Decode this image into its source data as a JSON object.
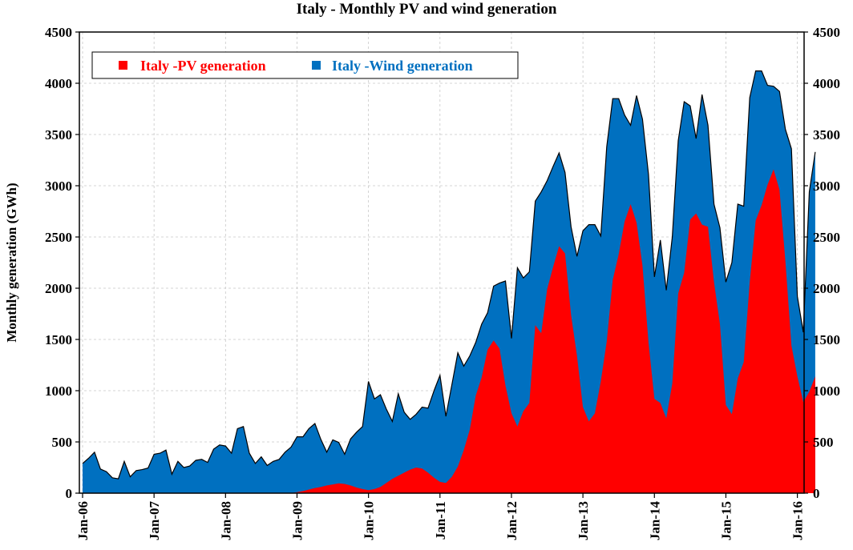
{
  "chart_data": {
    "type": "area",
    "title": "Italy - Monthly PV and wind generation",
    "ylabel": "Monthly generation (GWh)",
    "ylim": [
      0,
      4500
    ],
    "yticks": [
      0,
      500,
      1000,
      1500,
      2000,
      2500,
      3000,
      3500,
      4000,
      4500
    ],
    "xlim": [
      0,
      121
    ],
    "x_start": "Jan-06",
    "xtick_positions": [
      0,
      12,
      24,
      36,
      48,
      60,
      72,
      84,
      96,
      108,
      120
    ],
    "xtick_labels": [
      "Jan-06",
      "Jan-07",
      "Jan-08",
      "Jan-09",
      "Jan-10",
      "Jan-11",
      "Jan-12",
      "Jan-13",
      "Jan-14",
      "Jan-15",
      "Jan-16"
    ],
    "legend_position": "top-left",
    "stacked": true,
    "series": [
      {
        "name": "Italy -PV generation",
        "color": "#ff0000",
        "values": [
          0,
          0,
          0,
          0,
          0,
          0,
          0,
          0,
          0,
          0,
          0,
          0,
          0,
          0,
          0,
          0,
          0,
          0,
          0,
          0,
          0,
          0,
          0,
          0,
          0,
          0,
          0,
          0,
          0,
          0,
          0,
          0,
          0,
          0,
          0,
          0,
          10,
          20,
          35,
          50,
          60,
          75,
          85,
          95,
          90,
          75,
          55,
          40,
          30,
          40,
          60,
          100,
          140,
          170,
          200,
          230,
          250,
          240,
          200,
          150,
          110,
          100,
          160,
          260,
          420,
          620,
          950,
          1130,
          1400,
          1490,
          1410,
          1050,
          780,
          650,
          800,
          880,
          1640,
          1560,
          1990,
          2210,
          2410,
          2340,
          1740,
          1340,
          840,
          700,
          780,
          1090,
          1480,
          2080,
          2330,
          2650,
          2820,
          2640,
          2220,
          1470,
          920,
          880,
          730,
          1070,
          1950,
          2150,
          2670,
          2730,
          2620,
          2600,
          2060,
          1650,
          860,
          770,
          1120,
          1280,
          2060,
          2660,
          2810,
          3010,
          3160,
          2960,
          2260,
          1440,
          1140,
          890,
          990,
          1140
        ]
      },
      {
        "name": "Italy -Wind generation",
        "color": "#0070c0",
        "values": [
          290,
          340,
          400,
          235,
          210,
          150,
          140,
          310,
          160,
          220,
          230,
          245,
          380,
          390,
          420,
          185,
          310,
          250,
          265,
          320,
          330,
          300,
          430,
          470,
          460,
          390,
          630,
          650,
          390,
          290,
          355,
          270,
          310,
          330,
          400,
          450,
          540,
          530,
          595,
          630,
          465,
          325,
          435,
          400,
          290,
          455,
          540,
          610,
          1060,
          880,
          900,
          720,
          560,
          800,
          590,
          490,
          520,
          600,
          630,
          850,
          1040,
          650,
          900,
          1110,
          820,
          720,
          520,
          520,
          360,
          530,
          640,
          1020,
          730,
          1550,
          1300,
          1280,
          1210,
          1380,
          1060,
          980,
          910,
          790,
          860,
          970,
          1720,
          1920,
          1840,
          1420,
          1900,
          1770,
          1520,
          1040,
          770,
          1240,
          1430,
          1640,
          1190,
          1590,
          1250,
          1430,
          1490,
          1670,
          1110,
          730,
          1270,
          990,
          760,
          940,
          1200,
          1480,
          1700,
          1520,
          1800,
          1460,
          1310,
          970,
          810,
          960,
          1290,
          1920,
          780,
          680,
          1950,
          2190
        ]
      }
    ]
  },
  "legend": {
    "pv_label": "Italy -PV generation",
    "wind_label": "Italy -Wind generation"
  }
}
